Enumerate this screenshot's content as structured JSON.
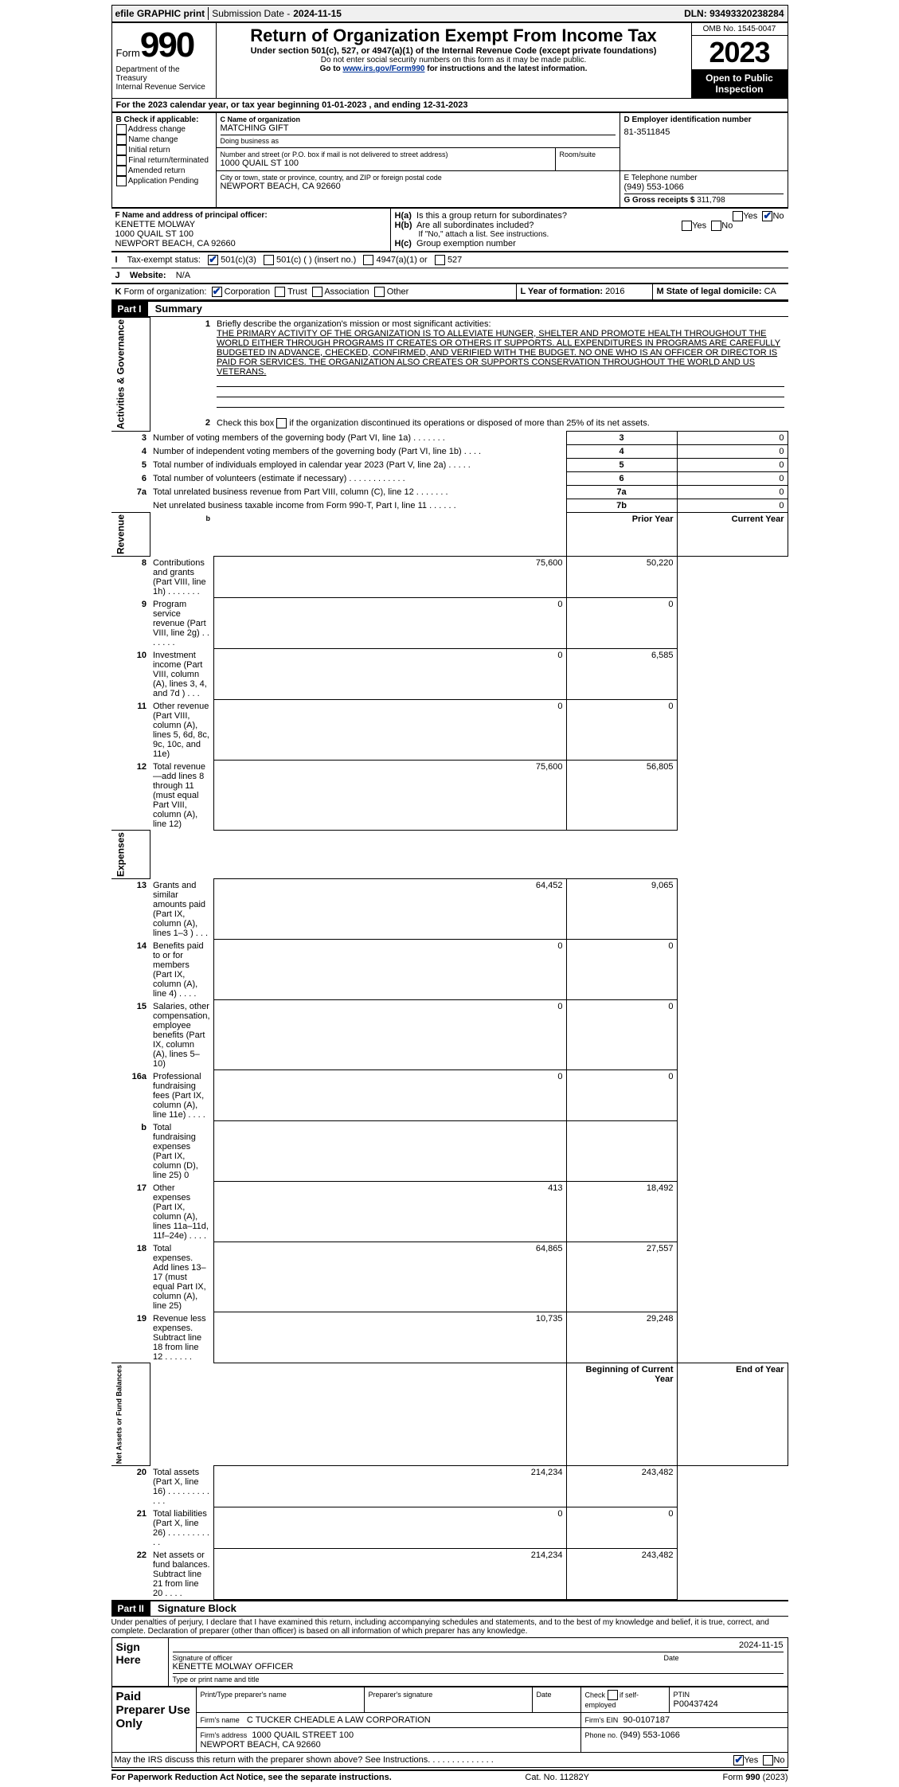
{
  "topbar": {
    "efile": "efile GRAPHIC print",
    "sub_label": "Submission Date - ",
    "sub_date": "2024-11-15",
    "dln_label": "DLN: ",
    "dln": "93493320238284"
  },
  "header": {
    "form_label": "Form",
    "form_num": "990",
    "dept1": "Department of the Treasury",
    "dept2": "Internal Revenue Service",
    "title": "Return of Organization Exempt From Income Tax",
    "subtitle": "Under section 501(c), 527, or 4947(a)(1) of the Internal Revenue Code (except private foundations)",
    "note1": "Do not enter social security numbers on this form as it may be made public.",
    "note2_pre": "Go to ",
    "note2_link": "www.irs.gov/Form990",
    "note2_post": " for instructions and the latest information.",
    "omb": "OMB No. 1545-0047",
    "year": "2023",
    "inspection": "Open to Public Inspection"
  },
  "A": {
    "text": "For the 2023 calendar year, or tax year beginning 01-01-2023   , and ending 12-31-2023"
  },
  "B": {
    "label": "B Check if applicable:",
    "items": [
      "Address change",
      "Name change",
      "Initial return",
      "Final return/terminated",
      "Amended return",
      "Application Pending"
    ]
  },
  "C": {
    "name_label": "C Name of organization",
    "name": "MATCHING GIFT",
    "dba_label": "Doing business as",
    "street_label": "Number and street (or P.O. box if mail is not delivered to street address)",
    "room_label": "Room/suite",
    "street": "1000 QUAIL ST 100",
    "city_label": "City or town, state or province, country, and ZIP or foreign postal code",
    "city": "NEWPORT BEACH, CA   92660"
  },
  "D": {
    "label": "D Employer identification number",
    "value": "81-3511845"
  },
  "E": {
    "label": "E Telephone number",
    "value": "(949) 553-1066"
  },
  "G": {
    "label": "G Gross receipts $ ",
    "value": "311,798"
  },
  "F": {
    "label": "F  Name and address of principal officer:",
    "line1": "KENETTE MOLWAY",
    "line2": "1000 QUAIL ST 100",
    "line3": "NEWPORT BEACH, CA  92660"
  },
  "H": {
    "a": "Is this a group return for subordinates?",
    "b": "Are all subordinates included?",
    "b_note": "If \"No,\" attach a list. See instructions.",
    "c": "Group exemption number",
    "yes": "Yes",
    "no": "No"
  },
  "I": {
    "label": "Tax-exempt status:",
    "opts": [
      "501(c)(3)",
      "501(c) (  ) (insert no.)",
      "4947(a)(1) or",
      "527"
    ]
  },
  "J": {
    "label": "Website:",
    "value": "N/A"
  },
  "K": {
    "label": "Form of organization:",
    "opts": [
      "Corporation",
      "Trust",
      "Association",
      "Other"
    ]
  },
  "L": {
    "label": "L Year of formation: ",
    "value": "2016"
  },
  "M": {
    "label": "M State of legal domicile: ",
    "value": "CA"
  },
  "part1": {
    "hdr": "Part I",
    "title": "Summary",
    "vcat_ag": "Activities & Governance",
    "vcat_rev": "Revenue",
    "vcat_exp": "Expenses",
    "vcat_na": "Net Assets or Fund Balances",
    "l1_label": "Briefly describe the organization's mission or most significant activities:",
    "l1_text": "THE PRIMARY ACTIVITY OF THE ORGANIZATION IS TO ALLEVIATE HUNGER, SHELTER AND PROMOTE HEALTH THROUGHOUT THE WORLD EITHER THROUGH PROGRAMS IT CREATES OR OTHERS IT SUPPORTS. ALL EXPENDITURES IN PROGRAMS ARE CAREFULLY BUDGETED IN ADVANCE, CHECKED, CONFIRMED, AND VERIFIED WITH THE BUDGET. NO ONE WHO IS AN OFFICER OR DIRECTOR IS PAID FOR SERVICES. THE ORGANIZATION ALSO CREATES OR SUPPORTS CONSERVATION THROUGHOUT THE WORLD AND US VETERANS.",
    "l2": "Check this box        if the organization discontinued its operations or disposed of more than 25% of its net assets.",
    "rows_ag": [
      {
        "n": "3",
        "desc": "Number of voting members of the governing body (Part VI, line 1a)   .    .    .    .    .    .    .",
        "lbl": "3",
        "val": "0"
      },
      {
        "n": "4",
        "desc": "Number of independent voting members of the governing body (Part VI, line 1b)    .    .    .    .",
        "lbl": "4",
        "val": "0"
      },
      {
        "n": "5",
        "desc": "Total number of individuals employed in calendar year 2023 (Part V, line 2a)    .    .    .    .    .",
        "lbl": "5",
        "val": "0"
      },
      {
        "n": "6",
        "desc": "Total number of volunteers (estimate if necessary)    .    .    .    .    .    .    .    .    .    .    .    .",
        "lbl": "6",
        "val": "0"
      },
      {
        "n": "7a",
        "desc": "Total unrelated business revenue from Part VIII, column (C), line 12    .    .    .    .    .    .    .",
        "lbl": "7a",
        "val": "0"
      },
      {
        "n": "",
        "desc": "Net unrelated business taxable income from Form 990-T, Part I, line 11    .    .    .    .    .    .",
        "lbl": "7b",
        "val": "0"
      }
    ],
    "col_prior": "Prior Year",
    "col_curr": "Current Year",
    "rows_rev": [
      {
        "n": "8",
        "desc": "Contributions and grants (Part VIII, line 1h)    .    .    .    .    .    .    .",
        "p": "75,600",
        "c": "50,220"
      },
      {
        "n": "9",
        "desc": "Program service revenue (Part VIII, line 2g)    .    .    .    .    .    .    .",
        "p": "0",
        "c": "0"
      },
      {
        "n": "10",
        "desc": "Investment income (Part VIII, column (A), lines 3, 4, and 7d )    .    .    .",
        "p": "0",
        "c": "6,585"
      },
      {
        "n": "11",
        "desc": "Other revenue (Part VIII, column (A), lines 5, 6d, 8c, 9c, 10c, and 11e)",
        "p": "0",
        "c": "0"
      },
      {
        "n": "12",
        "desc": "Total revenue—add lines 8 through 11 (must equal Part VIII, column (A), line 12)",
        "p": "75,600",
        "c": "56,805"
      }
    ],
    "rows_exp": [
      {
        "n": "13",
        "desc": "Grants and similar amounts paid (Part IX, column (A), lines 1–3 )    .    .    .",
        "p": "64,452",
        "c": "9,065"
      },
      {
        "n": "14",
        "desc": "Benefits paid to or for members (Part IX, column (A), line 4)    .    .    .    .",
        "p": "0",
        "c": "0"
      },
      {
        "n": "15",
        "desc": "Salaries, other compensation, employee benefits (Part IX, column (A), lines 5–10)",
        "p": "0",
        "c": "0"
      },
      {
        "n": "16a",
        "desc": "Professional fundraising fees (Part IX, column (A), line 11e)    .    .    .    .",
        "p": "0",
        "c": "0"
      },
      {
        "n": "b",
        "desc": "Total fundraising expenses (Part IX, column (D), line 25) 0",
        "p": "",
        "c": "",
        "shade": true
      },
      {
        "n": "17",
        "desc": "Other expenses (Part IX, column (A), lines 11a–11d, 11f–24e)    .    .    .    .",
        "p": "413",
        "c": "18,492"
      },
      {
        "n": "18",
        "desc": "Total expenses. Add lines 13–17 (must equal Part IX, column (A), line 25)",
        "p": "64,865",
        "c": "27,557"
      },
      {
        "n": "19",
        "desc": "Revenue less expenses. Subtract line 18 from line 12    .    .    .    .    .    .",
        "p": "10,735",
        "c": "29,248"
      }
    ],
    "col_beg": "Beginning of Current Year",
    "col_end": "End of Year",
    "rows_na": [
      {
        "n": "20",
        "desc": "Total assets (Part X, line 16)    .    .    .    .    .    .    .    .    .    .    .    .",
        "p": "214,234",
        "c": "243,482"
      },
      {
        "n": "21",
        "desc": "Total liabilities (Part X, line 26)    .    .    .    .    .    .    .    .    .    .    .",
        "p": "0",
        "c": "0"
      },
      {
        "n": "22",
        "desc": "Net assets or fund balances. Subtract line 21 from line 20    .    .    .    .",
        "p": "214,234",
        "c": "243,482"
      }
    ]
  },
  "part2": {
    "hdr": "Part II",
    "title": "Signature Block",
    "decl": "Under penalties of perjury, I declare that I have examined this return, including accompanying schedules and statements, and to the best of my knowledge and belief, it is true, correct, and complete. Declaration of preparer (other than officer) is based on all information of which preparer has any knowledge.",
    "sign_here": "Sign Here",
    "sig_label": "Signature of officer",
    "sig_name": "KENETTE MOLWAY OFFICER",
    "sig_name_label": "Type or print name and title",
    "date_label": "Date",
    "date": "2024-11-15",
    "paid": "Paid Preparer Use Only",
    "prep_name_label": "Print/Type preparer's name",
    "prep_sig_label": "Preparer's signature",
    "check_self": "Check        if self-employed",
    "ptin_label": "PTIN",
    "ptin": "P00437424",
    "firm_name_label": "Firm's name",
    "firm_name": "C TUCKER CHEADLE A LAW CORPORATION",
    "firm_ein_label": "Firm's EIN",
    "firm_ein": "90-0107187",
    "firm_addr_label": "Firm's address",
    "firm_addr": "1000 QUAIL STREET 100\nNEWPORT BEACH, CA  92660",
    "phone_label": "Phone no.",
    "phone": "(949) 553-1066",
    "may_irs": "May the IRS discuss this return with the preparer shown above? See Instructions.    .    .    .    .    .    .    .    .    .    .    .    .    ."
  },
  "footer": {
    "left": "For Paperwork Reduction Act Notice, see the separate instructions.",
    "mid": "Cat. No. 11282Y",
    "right": "Form 990 (2023)"
  }
}
